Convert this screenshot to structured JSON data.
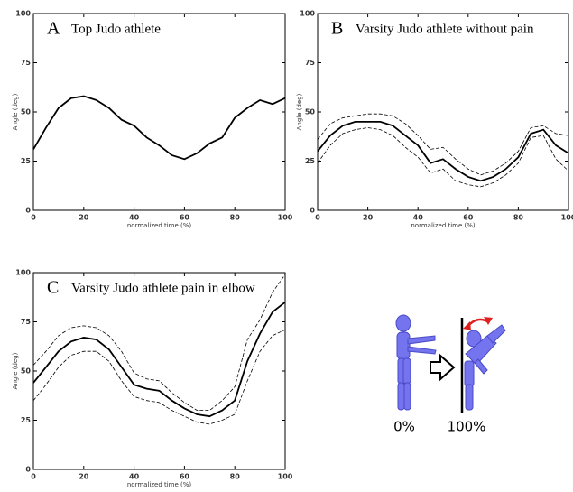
{
  "chart_data": [
    {
      "type": "line",
      "label": "A",
      "title": "Top Judo athlete",
      "xlabel": "normalized time (%)",
      "ylabel": "Angle (deg)",
      "x": [
        0,
        5,
        10,
        15,
        20,
        25,
        30,
        35,
        40,
        45,
        50,
        55,
        60,
        65,
        70,
        75,
        80,
        85,
        90,
        95,
        100
      ],
      "series": [
        {
          "color": "#000000",
          "dashed": false,
          "values": [
            31,
            42,
            52,
            57,
            58,
            56,
            52,
            46,
            43,
            37,
            33,
            28,
            26,
            29,
            34,
            37,
            47,
            52,
            56,
            54,
            57
          ]
        }
      ],
      "xlim": [
        0,
        100
      ],
      "xticks": [
        0,
        20,
        40,
        60,
        80,
        100
      ],
      "ylim": [
        0,
        100
      ],
      "yticks": [
        0,
        25,
        50,
        75,
        100
      ]
    },
    {
      "type": "line",
      "label": "B",
      "title": "Varsity Judo athlete without pain",
      "xlabel": "normalized time (%)",
      "ylabel": "Angle (deg)",
      "x": [
        0,
        5,
        10,
        15,
        20,
        25,
        30,
        35,
        40,
        45,
        50,
        55,
        60,
        65,
        70,
        75,
        80,
        85,
        90,
        95,
        100
      ],
      "series": [
        {
          "color": "#000000",
          "dashed": false,
          "values": [
            30,
            38,
            43,
            45,
            45,
            45,
            43,
            38,
            33,
            24,
            26,
            21,
            17,
            15,
            17,
            21,
            27,
            39,
            41,
            33,
            29
          ]
        },
        {
          "color": "#000000",
          "dashed": true,
          "values": [
            36,
            44,
            47,
            48,
            49,
            49,
            48,
            44,
            38,
            31,
            32,
            26,
            21,
            18,
            20,
            24,
            30,
            42,
            43,
            39,
            38
          ]
        },
        {
          "color": "#000000",
          "dashed": true,
          "values": [
            24,
            33,
            39,
            41,
            42,
            41,
            38,
            32,
            27,
            19,
            21,
            15,
            13,
            12,
            14,
            18,
            24,
            37,
            38,
            26,
            20
          ]
        }
      ],
      "xlim": [
        0,
        100
      ],
      "xticks": [
        0,
        20,
        40,
        60,
        80,
        100
      ],
      "ylim": [
        0,
        100
      ],
      "yticks": [
        0,
        25,
        50,
        75,
        100
      ]
    },
    {
      "type": "line",
      "label": "C",
      "title": "Varsity Judo athlete pain in elbow",
      "xlabel": "normalized time (%)",
      "ylabel": "Angle (deg)",
      "x": [
        0,
        5,
        10,
        15,
        20,
        25,
        30,
        35,
        40,
        45,
        50,
        55,
        60,
        65,
        70,
        75,
        80,
        85,
        90,
        95,
        100
      ],
      "series": [
        {
          "color": "#000000",
          "dashed": false,
          "values": [
            44,
            52,
            60,
            65,
            67,
            66,
            61,
            52,
            43,
            41,
            40,
            35,
            31,
            28,
            27,
            30,
            35,
            55,
            69,
            80,
            85
          ]
        },
        {
          "color": "#000000",
          "dashed": true,
          "values": [
            53,
            60,
            68,
            72,
            73,
            72,
            68,
            60,
            49,
            46,
            45,
            39,
            34,
            30,
            30,
            35,
            42,
            66,
            76,
            90,
            99
          ]
        },
        {
          "color": "#000000",
          "dashed": true,
          "values": [
            35,
            43,
            52,
            58,
            60,
            60,
            55,
            45,
            37,
            35,
            34,
            30,
            27,
            24,
            23,
            25,
            28,
            45,
            60,
            68,
            71
          ]
        }
      ],
      "xlim": [
        0,
        100
      ],
      "xticks": [
        0,
        20,
        40,
        60,
        80,
        100
      ],
      "ylim": [
        0,
        100
      ],
      "yticks": [
        0,
        25,
        50,
        75,
        100
      ]
    }
  ],
  "illustration": {
    "labels": [
      "0%",
      "100%"
    ]
  }
}
